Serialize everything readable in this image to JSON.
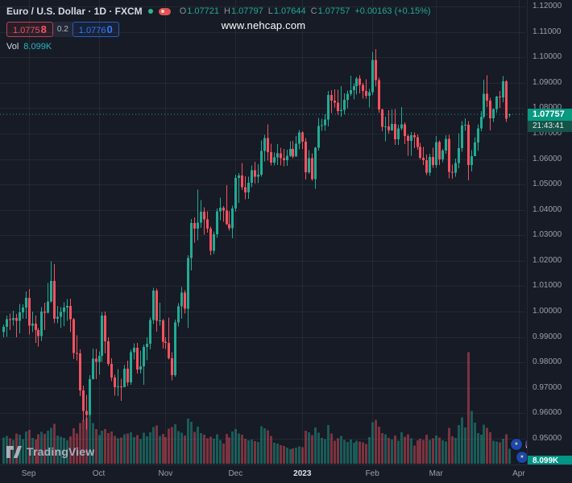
{
  "header": {
    "symbol_title": "Euro / U.S. Dollar · 1D · FXCM",
    "ohlc": {
      "o_label": "O",
      "o": "1.07721",
      "h_label": "H",
      "h": "1.07797",
      "l_label": "L",
      "l": "1.07644",
      "c_label": "C",
      "c": "1.07757",
      "change": "+0.00163 (+0.15%)"
    },
    "bid_main": "1.0775",
    "bid_sup": "8",
    "spread": "0.2",
    "ask_main": "1.0776",
    "ask_sup": "0",
    "vol_label": "Vol",
    "vol_value": "8.099K"
  },
  "watermark": "www.nehcap.com",
  "price_label": {
    "value": "1.07757",
    "countdown": "21:43:41"
  },
  "volume_axis_label": "8.099K",
  "logo": {
    "text": "TradingView"
  },
  "event_icons": [
    "eu-flag",
    "us-flag",
    "eu-flag"
  ],
  "colors": {
    "background": "#161b26",
    "up": "#22ab94",
    "down": "#f7525f",
    "buy_blue": "#3179f5",
    "sell_red": "#f7525f",
    "badge_green": "#089981",
    "countdown_bg": "#155247",
    "volume_badge": "#009485",
    "text_primary": "#d6dae3",
    "text_muted": "#8b909c",
    "grid": "rgba(255,255,255,0.06)"
  },
  "chart_data": {
    "type": "candlestick",
    "symbol": "Euro / U.S. Dollar",
    "exchange": "FXCM",
    "timeframe": "1D",
    "ohlc_current": {
      "open": 1.07721,
      "high": 1.07797,
      "low": 1.07644,
      "close": 1.07757,
      "change": 0.00163,
      "change_pct": 0.15
    },
    "last_price": 1.07757,
    "current_volume": "8.099K",
    "volume_unit": "K",
    "ylim": [
      0.95,
      1.12
    ],
    "price_ticks": [
      "1.12000",
      "1.11000",
      "1.10000",
      "1.09000",
      "1.08000",
      "1.07000",
      "1.06000",
      "1.05000",
      "1.04000",
      "1.03000",
      "1.02000",
      "1.01000",
      "1.00000",
      "0.99000",
      "0.98000",
      "0.97000",
      "0.96000",
      "0.95000"
    ],
    "time_ticks": [
      {
        "label": "Sep",
        "index": 8,
        "major": false
      },
      {
        "label": "Oct",
        "index": 30,
        "major": false
      },
      {
        "label": "Nov",
        "index": 51,
        "major": false
      },
      {
        "label": "Dec",
        "index": 73,
        "major": false
      },
      {
        "label": "2023",
        "index": 94,
        "major": true
      },
      {
        "label": "Feb",
        "index": 116,
        "major": false
      },
      {
        "label": "Mar",
        "index": 136,
        "major": false
      },
      {
        "label": "Apr",
        "index": 162,
        "major": false
      }
    ],
    "candles": [
      [
        0.992,
        0.995,
        0.9899,
        0.994,
        14.2
      ],
      [
        0.994,
        0.9985,
        0.9901,
        0.997,
        15.1
      ],
      [
        0.997,
        0.9992,
        0.9928,
        0.9967,
        13.8
      ],
      [
        0.9967,
        1.0003,
        0.9945,
        0.9975,
        12.9
      ],
      [
        0.9975,
        0.999,
        0.9899,
        0.9964,
        16.4
      ],
      [
        0.9964,
        1.003,
        0.9914,
        0.9997,
        15.7
      ],
      [
        0.9997,
        1.0028,
        0.9972,
        1.0016,
        13.2
      ],
      [
        1.0016,
        1.0079,
        0.9972,
        1.0054,
        17.5
      ],
      [
        1.0054,
        1.0089,
        0.991,
        0.9945,
        18.3
      ],
      [
        0.9945,
        1.0,
        0.992,
        0.9953,
        14.0
      ],
      [
        0.9953,
        0.9985,
        0.9876,
        0.9927,
        13.1
      ],
      [
        0.9927,
        0.9935,
        0.9863,
        0.9903,
        15.9
      ],
      [
        0.9903,
        1.0017,
        0.9885,
        1.0,
        17.2
      ],
      [
        1.0,
        1.0035,
        0.9928,
        0.9995,
        16.0
      ],
      [
        0.9995,
        1.0113,
        0.9993,
        1.004,
        17.8
      ],
      [
        1.004,
        1.0198,
        1.0035,
        1.012,
        19.4
      ],
      [
        1.012,
        1.0187,
        0.9955,
        0.9971,
        21.6
      ],
      [
        0.9971,
        1.0023,
        0.9954,
        0.9979,
        15.2
      ],
      [
        0.9979,
        1.0018,
        0.9935,
        0.9999,
        14.6
      ],
      [
        0.9999,
        1.0036,
        0.9943,
        1.0016,
        13.9
      ],
      [
        1.0016,
        1.005,
        0.9964,
        1.0023,
        12.7
      ],
      [
        1.0023,
        1.0051,
        0.992,
        0.997,
        14.8
      ],
      [
        0.997,
        0.9975,
        0.9813,
        0.9837,
        19.1
      ],
      [
        0.9837,
        0.9907,
        0.9807,
        0.9835,
        16.3
      ],
      [
        0.9835,
        0.9852,
        0.9668,
        0.969,
        22.0
      ],
      [
        0.969,
        0.9709,
        0.9569,
        0.9609,
        23.5
      ],
      [
        0.9609,
        0.9672,
        0.9536,
        0.9593,
        24.8
      ],
      [
        0.9593,
        0.975,
        0.959,
        0.9735,
        26.1
      ],
      [
        0.9735,
        0.9854,
        0.9733,
        0.9815,
        21.9
      ],
      [
        0.9815,
        0.9853,
        0.9734,
        0.9802,
        18.7
      ],
      [
        0.9802,
        0.9844,
        0.9751,
        0.9826,
        15.4
      ],
      [
        0.9826,
        0.9999,
        0.9802,
        0.9985,
        17.9
      ],
      [
        0.9985,
        1.0,
        0.9835,
        0.9883,
        18.8
      ],
      [
        0.9883,
        0.9899,
        0.9787,
        0.9794,
        16.5
      ],
      [
        0.9794,
        0.9817,
        0.9726,
        0.9741,
        17.3
      ],
      [
        0.9741,
        0.9752,
        0.967,
        0.9702,
        14.9
      ],
      [
        0.9702,
        0.9774,
        0.9668,
        0.9706,
        13.6
      ],
      [
        0.9706,
        0.9736,
        0.9649,
        0.9703,
        14.1
      ],
      [
        0.9703,
        0.9789,
        0.9702,
        0.9776,
        15.8
      ],
      [
        0.9776,
        0.9807,
        0.9707,
        0.9721,
        16.2
      ],
      [
        0.9721,
        0.985,
        0.9712,
        0.9841,
        17.0
      ],
      [
        0.9841,
        0.9875,
        0.9812,
        0.9857,
        14.4
      ],
      [
        0.9857,
        0.9876,
        0.9757,
        0.9773,
        15.5
      ],
      [
        0.9773,
        0.9846,
        0.9756,
        0.9785,
        13.3
      ],
      [
        0.9785,
        0.987,
        0.9712,
        0.9861,
        16.8
      ],
      [
        0.9861,
        0.9899,
        0.9808,
        0.9873,
        14.7
      ],
      [
        0.9873,
        0.9976,
        0.9851,
        0.9967,
        16.9
      ],
      [
        0.9967,
        1.0093,
        0.9951,
        1.0082,
        19.8
      ],
      [
        1.0082,
        1.009,
        0.9921,
        0.9964,
        20.6
      ],
      [
        0.9964,
        1.0035,
        0.9944,
        0.9965,
        15.0
      ],
      [
        0.9965,
        0.9971,
        0.9855,
        0.9881,
        16.1
      ],
      [
        0.9881,
        0.9899,
        0.9853,
        0.9876,
        14.3
      ],
      [
        0.9876,
        0.9976,
        0.9812,
        0.9817,
        18.9
      ],
      [
        0.9817,
        0.984,
        0.9729,
        0.975,
        19.7
      ],
      [
        0.975,
        0.9968,
        0.9743,
        0.9957,
        21.2
      ],
      [
        0.9957,
        1.0034,
        0.9942,
        1.0021,
        17.6
      ],
      [
        1.0021,
        1.0096,
        0.9972,
        1.0074,
        16.7
      ],
      [
        1.0074,
        1.0084,
        0.9992,
        1.0011,
        15.3
      ],
      [
        1.0011,
        1.0222,
        0.9936,
        1.021,
        24.4
      ],
      [
        1.021,
        1.0365,
        1.0162,
        1.0348,
        22.7
      ],
      [
        1.0348,
        1.037,
        1.0271,
        1.0326,
        17.1
      ],
      [
        1.0326,
        1.048,
        1.028,
        1.035,
        19.9
      ],
      [
        1.035,
        1.0439,
        1.033,
        1.0393,
        16.6
      ],
      [
        1.0393,
        1.041,
        1.0302,
        1.0363,
        15.6
      ],
      [
        1.0363,
        1.0395,
        1.031,
        1.0326,
        13.7
      ],
      [
        1.0326,
        1.0334,
        1.0222,
        1.0239,
        14.5
      ],
      [
        1.0239,
        1.0315,
        1.0227,
        1.0304,
        13.4
      ],
      [
        1.0304,
        1.0405,
        1.029,
        1.0395,
        15.9
      ],
      [
        1.0395,
        1.0448,
        1.036,
        1.0409,
        12.8
      ],
      [
        1.0409,
        1.0415,
        1.0353,
        1.0398,
        10.9
      ],
      [
        1.0398,
        1.0497,
        1.034,
        1.0344,
        16.0
      ],
      [
        1.0344,
        1.0394,
        1.0319,
        1.0328,
        14.2
      ],
      [
        1.0328,
        1.0416,
        1.0289,
        1.0406,
        17.4
      ],
      [
        1.0406,
        1.0539,
        1.0393,
        1.0525,
        18.6
      ],
      [
        1.0525,
        1.0545,
        1.0428,
        1.0535,
        16.3
      ],
      [
        1.0535,
        1.0585,
        1.0478,
        1.049,
        15.7
      ],
      [
        1.049,
        1.0532,
        1.0442,
        1.0468,
        13.5
      ],
      [
        1.0468,
        1.0531,
        1.0443,
        1.0507,
        12.6
      ],
      [
        1.0507,
        1.0574,
        1.0489,
        1.0556,
        13.0
      ],
      [
        1.0556,
        1.0589,
        1.0504,
        1.0531,
        12.2
      ],
      [
        1.0531,
        1.058,
        1.0505,
        1.0538,
        11.8
      ],
      [
        1.0538,
        1.0673,
        1.053,
        1.0632,
        20.3
      ],
      [
        1.0632,
        1.0695,
        1.0591,
        1.0683,
        19.2
      ],
      [
        1.0683,
        1.0736,
        1.0594,
        1.0627,
        18.1
      ],
      [
        1.0627,
        1.066,
        1.0575,
        1.0586,
        14.9
      ],
      [
        1.0586,
        1.0625,
        1.0574,
        1.0607,
        11.3
      ],
      [
        1.0607,
        1.0658,
        1.0576,
        1.0622,
        10.8
      ],
      [
        1.0622,
        1.0644,
        1.0574,
        1.0604,
        10.1
      ],
      [
        1.0604,
        1.0639,
        1.0572,
        1.0595,
        9.6
      ],
      [
        1.0595,
        1.0636,
        1.0573,
        1.0613,
        8.7
      ],
      [
        1.0613,
        1.067,
        1.0608,
        1.064,
        7.9
      ],
      [
        1.064,
        1.0672,
        1.0604,
        1.061,
        8.2
      ],
      [
        1.061,
        1.069,
        1.0609,
        1.066,
        8.8
      ],
      [
        1.066,
        1.0714,
        1.0638,
        1.0705,
        9.4
      ],
      [
        1.0705,
        1.071,
        1.064,
        1.0668,
        9.0
      ],
      [
        1.0668,
        1.0683,
        1.0519,
        1.0548,
        17.8
      ],
      [
        1.0548,
        1.0635,
        1.0542,
        1.0603,
        16.9
      ],
      [
        1.0603,
        1.0622,
        1.0515,
        1.0521,
        15.4
      ],
      [
        1.0521,
        1.0648,
        1.0483,
        1.0644,
        19.6
      ],
      [
        1.0644,
        1.0761,
        1.0634,
        1.073,
        16.8
      ],
      [
        1.073,
        1.0759,
        1.0711,
        1.0733,
        13.9
      ],
      [
        1.0733,
        1.0776,
        1.0711,
        1.0756,
        13.2
      ],
      [
        1.0756,
        1.0868,
        1.0729,
        1.0852,
        20.9
      ],
      [
        1.0852,
        1.087,
        1.078,
        1.083,
        16.2
      ],
      [
        1.083,
        1.0874,
        1.0802,
        1.0822,
        12.4
      ],
      [
        1.0822,
        1.0873,
        1.0775,
        1.0789,
        13.6
      ],
      [
        1.0789,
        1.0887,
        1.0766,
        1.0793,
        15.1
      ],
      [
        1.0793,
        1.0858,
        1.0776,
        1.0832,
        12.9
      ],
      [
        1.0832,
        1.0869,
        1.08,
        1.0856,
        11.7
      ],
      [
        1.0856,
        1.0927,
        1.0848,
        1.087,
        13.0
      ],
      [
        1.087,
        1.0898,
        1.0835,
        1.0886,
        11.2
      ],
      [
        1.0886,
        1.0923,
        1.0853,
        1.0916,
        12.5
      ],
      [
        1.0916,
        1.0929,
        1.0858,
        1.0892,
        12.0
      ],
      [
        1.0892,
        1.09,
        1.0837,
        1.0868,
        11.5
      ],
      [
        1.0868,
        1.0913,
        1.0838,
        1.0849,
        10.7
      ],
      [
        1.0849,
        1.0875,
        1.0802,
        1.0863,
        14.4
      ],
      [
        1.0863,
        1.1021,
        1.0852,
        1.0989,
        22.4
      ],
      [
        1.0989,
        1.1033,
        1.0885,
        1.0911,
        23.8
      ],
      [
        1.0911,
        1.092,
        1.0782,
        1.0795,
        20.1
      ],
      [
        1.0795,
        1.0798,
        1.0709,
        1.0726,
        16.6
      ],
      [
        1.0726,
        1.0766,
        1.0669,
        1.0728,
        15.8
      ],
      [
        1.0728,
        1.0791,
        1.07,
        1.0713,
        14.0
      ],
      [
        1.0713,
        1.0794,
        1.0711,
        1.0738,
        13.1
      ],
      [
        1.0738,
        1.0797,
        1.0656,
        1.0677,
        15.2
      ],
      [
        1.0677,
        1.0735,
        1.0655,
        1.072,
        12.3
      ],
      [
        1.072,
        1.0804,
        1.0712,
        1.0736,
        17.0
      ],
      [
        1.0736,
        1.0744,
        1.0659,
        1.069,
        14.6
      ],
      [
        1.069,
        1.0696,
        1.0612,
        1.0672,
        15.9
      ],
      [
        1.0672,
        1.0706,
        1.0613,
        1.0694,
        13.8
      ],
      [
        1.0694,
        1.0705,
        1.0643,
        1.0686,
        9.8
      ],
      [
        1.0686,
        1.0697,
        1.0636,
        1.0648,
        12.7
      ],
      [
        1.0648,
        1.0663,
        1.0598,
        1.0605,
        13.5
      ],
      [
        1.0605,
        1.0647,
        1.0576,
        1.0596,
        12.9
      ],
      [
        1.0596,
        1.0617,
        1.0536,
        1.0546,
        15.6
      ],
      [
        1.0546,
        1.062,
        1.0533,
        1.0608,
        12.8
      ],
      [
        1.0608,
        1.0645,
        1.0565,
        1.0577,
        13.7
      ],
      [
        1.0577,
        1.0691,
        1.0565,
        1.0666,
        15.3
      ],
      [
        1.0666,
        1.0673,
        1.0577,
        1.0598,
        14.1
      ],
      [
        1.0598,
        1.0639,
        1.0588,
        1.0634,
        12.6
      ],
      [
        1.0634,
        1.0694,
        1.062,
        1.068,
        11.9
      ],
      [
        1.068,
        1.0695,
        1.0524,
        1.0549,
        19.3
      ],
      [
        1.0549,
        1.0578,
        1.0523,
        1.0546,
        14.8
      ],
      [
        1.0546,
        1.0601,
        1.0531,
        1.0584,
        13.9
      ],
      [
        1.0584,
        1.0701,
        1.0563,
        1.0643,
        20.8
      ],
      [
        1.0643,
        1.0749,
        1.0629,
        1.0731,
        24.9
      ],
      [
        1.0731,
        1.076,
        1.0711,
        1.0734,
        19.5
      ],
      [
        1.0734,
        1.0749,
        1.0516,
        1.0577,
        60.2
      ],
      [
        1.0577,
        1.0635,
        1.0551,
        1.0611,
        28.4
      ],
      [
        1.0611,
        1.0685,
        1.0611,
        1.0665,
        22.1
      ],
      [
        1.0665,
        1.0737,
        1.0632,
        1.0721,
        16.5
      ],
      [
        1.0721,
        1.0789,
        1.0709,
        1.0766,
        15.7
      ],
      [
        1.0766,
        1.0912,
        1.0758,
        1.0856,
        21.0
      ],
      [
        1.0856,
        1.093,
        1.0805,
        1.083,
        19.4
      ],
      [
        1.083,
        1.084,
        1.0713,
        1.076,
        16.9
      ],
      [
        1.076,
        1.08,
        1.0745,
        1.0796,
        12.3
      ],
      [
        1.0796,
        1.0848,
        1.0782,
        1.0845,
        12.0
      ],
      [
        1.0845,
        1.0868,
        1.0801,
        1.0843,
        11.6
      ],
      [
        1.0843,
        1.0926,
        1.0824,
        1.0905,
        13.4
      ],
      [
        1.0905,
        1.091,
        1.0745,
        1.0759,
        15.8
      ],
      [
        1.07721,
        1.07797,
        1.07644,
        1.07757,
        8.099
      ]
    ]
  }
}
